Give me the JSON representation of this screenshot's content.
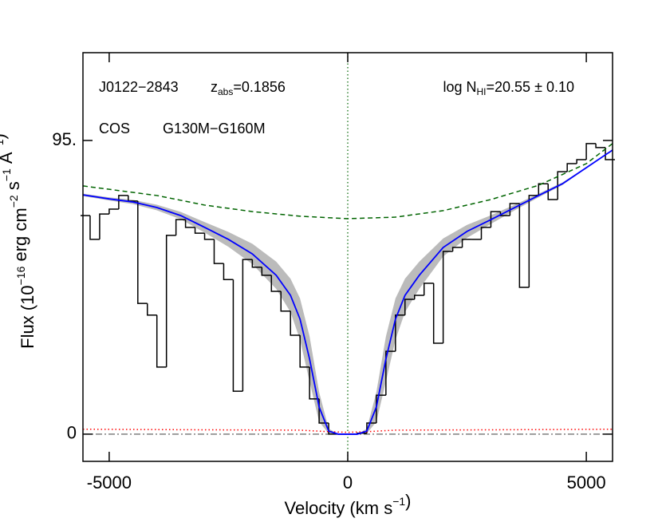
{
  "chart_data": {
    "type": "spectrum",
    "xlim": [
      -5550,
      5550
    ],
    "ylim": [
      -8.8,
      123.4
    ],
    "xticks": [
      -5000,
      0,
      5000
    ],
    "yticks": [
      0,
      {
        "value": 95,
        "label": "95."
      }
    ],
    "xlabel": {
      "text": [
        "Velocity (km s",
        ")"
      ],
      "sup": [
        "−1"
      ]
    },
    "ylabel": {
      "text": [
        "Flux (10",
        " erg cm",
        " s",
        " Å",
        ")"
      ],
      "sup": [
        "−16",
        "−2",
        "−1",
        "−1"
      ]
    },
    "annotations": [
      {
        "text": "J0122−2843"
      },
      {
        "text": "z",
        "sub": "abs",
        "after": "=0.1856"
      },
      {
        "text": "log N",
        "sub": "HI",
        "after": "=20.55 ± 0.10"
      },
      {
        "text": "COS"
      },
      {
        "text": "G130M−G160M"
      }
    ],
    "vline": 0,
    "vline_color": "#006400",
    "hline": 0,
    "hline_color": "#555555",
    "spectrum": {
      "color": "#000000",
      "bin_width": 200,
      "x": [
        -5500,
        -5300,
        -5100,
        -4900,
        -4700,
        -4500,
        -4300,
        -4100,
        -3900,
        -3700,
        -3500,
        -3300,
        -3100,
        -2900,
        -2700,
        -2500,
        -2300,
        -2100,
        -1900,
        -1700,
        -1500,
        -1300,
        -1100,
        -900,
        -700,
        -500,
        -300,
        -100,
        100,
        300,
        500,
        700,
        900,
        1100,
        1300,
        1500,
        1700,
        1900,
        2100,
        2300,
        2500,
        2700,
        2900,
        3100,
        3300,
        3500,
        3700,
        3900,
        4100,
        4300,
        4500,
        4700,
        4900,
        5100,
        5300,
        5500
      ],
      "values": [
        70.7,
        63,
        71.2,
        72.8,
        77.2,
        75.4,
        42.3,
        38.5,
        21.7,
        64.3,
        69.4,
        66.9,
        65,
        63,
        55.2,
        50,
        13.9,
        56.5,
        54,
        51.4,
        46.2,
        39.8,
        32,
        21.7,
        11.4,
        3.6,
        0,
        0,
        0,
        0.3,
        3.6,
        12.6,
        26.8,
        38.5,
        43.6,
        44.9,
        48.8,
        29.4,
        59.1,
        60.4,
        63,
        63,
        66.9,
        72,
        70.7,
        74.6,
        47.5,
        77.2,
        81,
        75.9,
        84.9,
        87.5,
        88.8,
        94,
        92.7,
        88.8
      ]
    },
    "fit": {
      "color": "#0000ff",
      "band_color": "#bbbbbb",
      "x": [
        -5550,
        -5000,
        -4500,
        -4000,
        -3500,
        -3000,
        -2500,
        -2000,
        -1500,
        -1200,
        -1000,
        -800,
        -600,
        -400,
        -200,
        0,
        200,
        400,
        600,
        800,
        1000,
        1200,
        1500,
        2000,
        2500,
        3000,
        3500,
        4000,
        4500,
        5000,
        5550
      ],
      "values": [
        77.4,
        76.1,
        75.1,
        73.3,
        70.7,
        66.9,
        63,
        58.3,
        51.4,
        44.9,
        37.2,
        24.3,
        8.8,
        1,
        0,
        0,
        0,
        1,
        8.8,
        24.3,
        37.2,
        44.9,
        51.4,
        60.4,
        65.6,
        69.4,
        73.3,
        77.2,
        81,
        86.2,
        91.9
      ],
      "lower": [
        77,
        75.6,
        74.4,
        72.4,
        69.5,
        65.2,
        60.6,
        55,
        47,
        39.5,
        30.5,
        17,
        4,
        0.2,
        0,
        0,
        0,
        0.2,
        4,
        17,
        30.5,
        39.5,
        47,
        57.5,
        63.5,
        68,
        72.4,
        76.6,
        80.6,
        86,
        91.8
      ],
      "upper": [
        77.8,
        76.6,
        75.8,
        74.2,
        71.9,
        68.6,
        65.4,
        61.6,
        55.8,
        50.3,
        43.9,
        31.6,
        13.6,
        1.8,
        0,
        0,
        0,
        1.8,
        13.6,
        31.6,
        43.9,
        50.3,
        55.8,
        63.3,
        67.7,
        70.8,
        74.2,
        77.8,
        81.4,
        86.4,
        92
      ]
    },
    "continuum": {
      "color": "#006400",
      "x": [
        -5550,
        -4000,
        -3000,
        -2000,
        -1000,
        0,
        1000,
        2000,
        3000,
        4000,
        5000,
        5550
      ],
      "values": [
        80.3,
        77.2,
        74.1,
        72,
        70.5,
        69.7,
        70.2,
        72.3,
        75.9,
        80.5,
        87.5,
        94
      ]
    },
    "error": {
      "color": "#ff0000",
      "x": [
        -5550,
        -3000,
        -1000,
        -400,
        0,
        400,
        1000,
        3000,
        5550
      ],
      "values": [
        1.6,
        1.4,
        1.3,
        0.8,
        0.6,
        0.8,
        1.3,
        1.4,
        1.6
      ]
    }
  }
}
